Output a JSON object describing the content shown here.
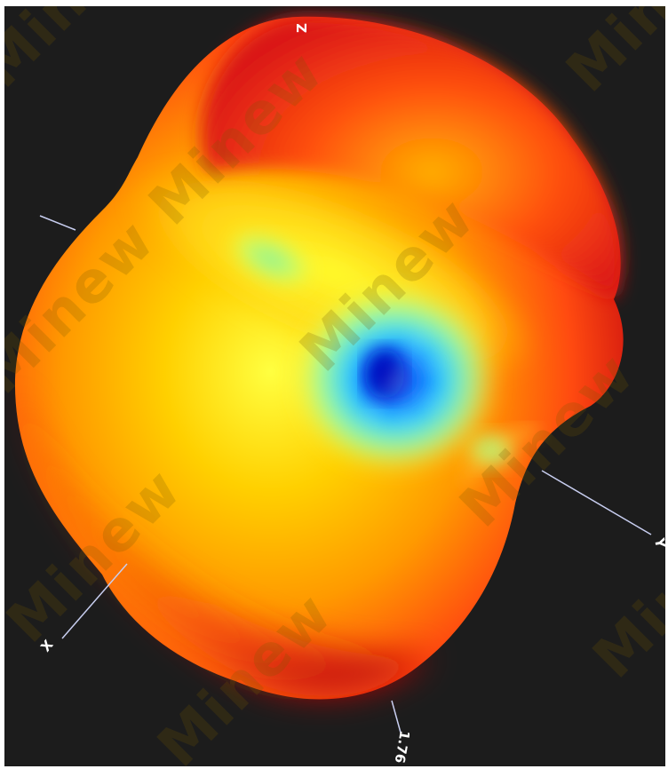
{
  "axis_labels": {
    "z": "Z",
    "y": "Y",
    "x": "X",
    "scale": "1.76"
  },
  "watermark": {
    "text": "Minew"
  },
  "colors": {
    "background": "#1c1c1c",
    "axis_line": "#c8cef0",
    "colormap": [
      "#0000cc",
      "#00aaff",
      "#7fffd4",
      "#ffff00",
      "#ffa500",
      "#ff3300",
      "#cc0000"
    ]
  }
}
